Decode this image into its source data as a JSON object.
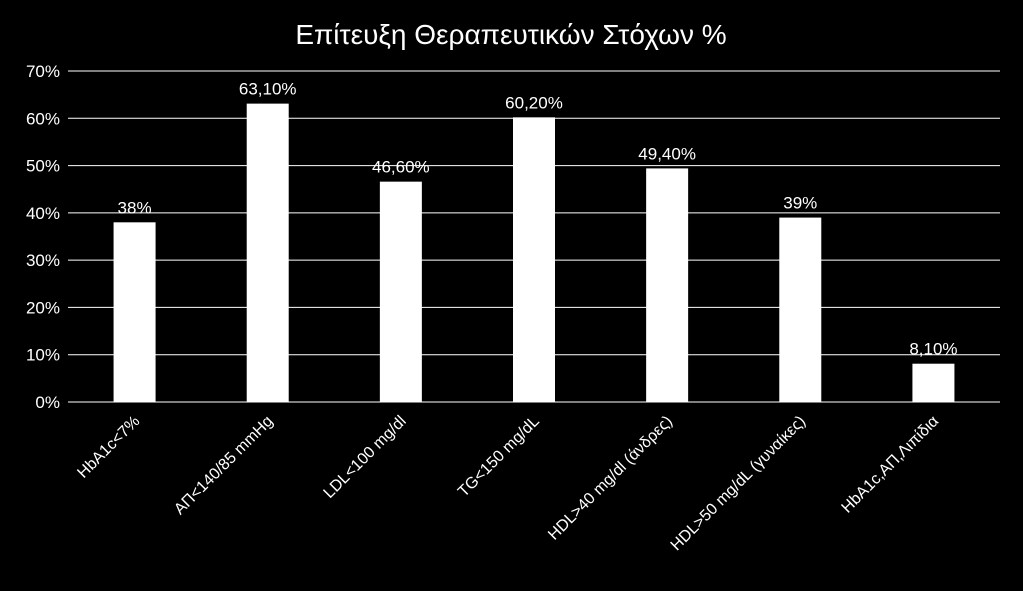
{
  "chart_data": {
    "type": "bar",
    "title": "Επίτευξη Θεραπευτικών Στόχων %",
    "xlabel": "",
    "ylabel": "",
    "categories": [
      "HbA1c<7%",
      "ΑΠ<140/85 mmHg",
      "LDL<100 mg/dl",
      "TG<150 mg/dL",
      "HDL>40 mg/dl (άνδρες)",
      "HDL>50 mg/dL (γυναίκες)",
      "HbA1c,ΑΠ,Λιπίδια"
    ],
    "values": [
      38,
      63.1,
      46.6,
      60.2,
      49.4,
      39,
      8.1
    ],
    "data_labels": [
      "38%",
      "63,10%",
      "46,60%",
      "60,20%",
      "49,40%",
      "39%",
      "8,10%"
    ],
    "ylim": [
      0,
      70
    ],
    "yticks": [
      0,
      10,
      20,
      30,
      40,
      50,
      60,
      70
    ],
    "ytick_labels": [
      "0%",
      "10%",
      "20%",
      "30%",
      "40%",
      "50%",
      "60%",
      "70%"
    ],
    "grid": true,
    "legend": "none",
    "colors": {
      "background": "#000000",
      "bar": "#ffffff",
      "text": "#ffffff",
      "grid": "#ffffff"
    }
  }
}
